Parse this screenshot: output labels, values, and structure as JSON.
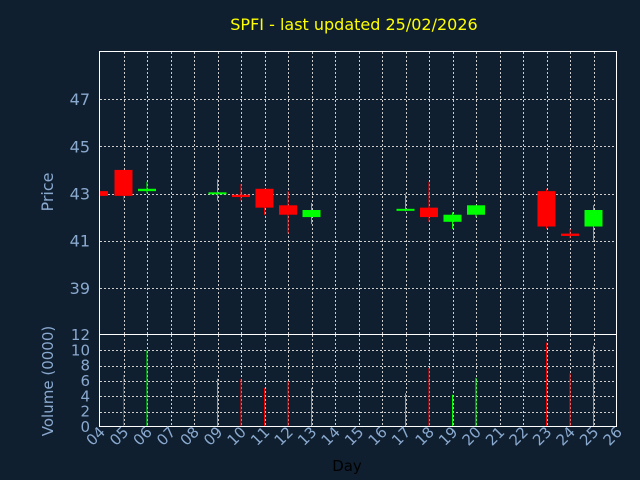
{
  "chart_data": {
    "type": "candlestick",
    "title": "SPFI - last updated 25/02/2026",
    "xlabel": "Day",
    "price_axis": {
      "label": "Price",
      "ylim": [
        37,
        49
      ],
      "ticks": [
        39,
        41,
        43,
        45,
        47
      ]
    },
    "volume_axis": {
      "label": "Volume (0000)",
      "ylim": [
        0,
        12
      ],
      "ticks": [
        0,
        2,
        4,
        6,
        8,
        10,
        12
      ]
    },
    "grid": true,
    "x_ticks": [
      "04",
      "05",
      "06",
      "07",
      "08",
      "09",
      "10",
      "11",
      "12",
      "13",
      "14",
      "15",
      "16",
      "17",
      "18",
      "19",
      "20",
      "21",
      "22",
      "23",
      "24",
      "25",
      "26"
    ],
    "colors": {
      "up": "#00ff00",
      "down": "#ff0000",
      "title": "#ffff00",
      "axis_text": "#8aa9cf",
      "frame": "#ffffff",
      "background": "#0f1f30"
    },
    "candles": [
      {
        "day": 4,
        "open": 43.1,
        "high": 43.1,
        "low": 42.9,
        "close": 42.9,
        "volume": 0
      },
      {
        "day": 5,
        "open": 44.0,
        "high": 44.0,
        "low": 42.7,
        "close": 42.9,
        "volume": 6.8
      },
      {
        "day": 6,
        "open": 43.1,
        "high": 43.5,
        "low": 43.0,
        "close": 43.2,
        "volume": 10.0
      },
      {
        "day": 9,
        "open": 43.0,
        "high": 43.6,
        "low": 42.7,
        "close": 43.05,
        "volume": 6.3
      },
      {
        "day": 10,
        "open": 42.95,
        "high": 43.4,
        "low": 42.7,
        "close": 42.85,
        "volume": 6.3
      },
      {
        "day": 11,
        "open": 43.2,
        "high": 43.2,
        "low": 42.1,
        "close": 42.4,
        "volume": 5.1
      },
      {
        "day": 12,
        "open": 42.5,
        "high": 43.1,
        "low": 41.3,
        "close": 42.1,
        "volume": 6.0
      },
      {
        "day": 13,
        "open": 42.0,
        "high": 42.6,
        "low": 41.7,
        "close": 42.3,
        "volume": 5.1
      },
      {
        "day": 17,
        "open": 42.3,
        "high": 43.0,
        "low": 42.25,
        "close": 42.35,
        "volume": 4.4
      },
      {
        "day": 18,
        "open": 42.4,
        "high": 43.5,
        "low": 41.8,
        "close": 42.0,
        "volume": 7.7
      },
      {
        "day": 19,
        "open": 41.8,
        "high": 42.2,
        "low": 41.5,
        "close": 42.1,
        "volume": 4.2
      },
      {
        "day": 20,
        "open": 42.1,
        "high": 42.5,
        "low": 42.0,
        "close": 42.5,
        "volume": 6.4
      },
      {
        "day": 23,
        "open": 43.1,
        "high": 43.2,
        "low": 41.5,
        "close": 41.6,
        "volume": 11.0
      },
      {
        "day": 24,
        "open": 41.3,
        "high": 41.5,
        "low": 41.1,
        "close": 41.2,
        "volume": 7.0
      },
      {
        "day": 25,
        "open": 41.6,
        "high": 42.5,
        "low": 41.0,
        "close": 42.3,
        "volume": 10.6
      }
    ]
  }
}
